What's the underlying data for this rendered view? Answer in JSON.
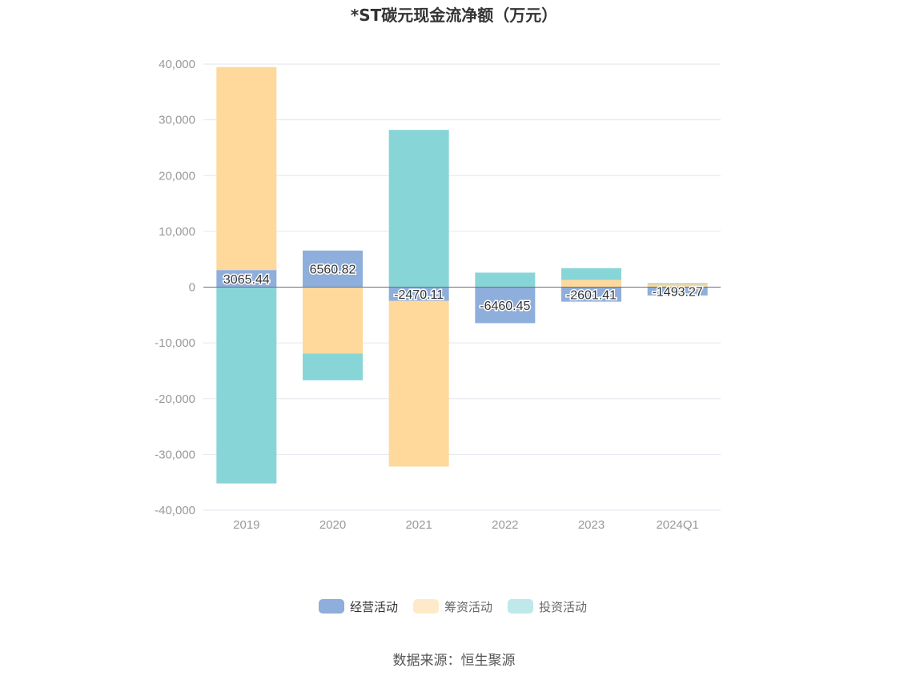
{
  "chart_data": {
    "type": "bar",
    "stacked": true,
    "title": "*ST碳元现金流净额（万元）",
    "categories": [
      "2019",
      "2020",
      "2021",
      "2022",
      "2023",
      "2024Q1"
    ],
    "series": [
      {
        "name": "经营活动",
        "color": "#8eaedc",
        "values": [
          3065.44,
          6560.82,
          -2470.11,
          -6460.45,
          -2601.41,
          -1493.27
        ]
      },
      {
        "name": "筹资活动",
        "color": "#fed99b",
        "values": [
          36400,
          -11900,
          -29700,
          0,
          1300,
          500
        ]
      },
      {
        "name": "投资活动",
        "color": "#88d5d8",
        "values": [
          -35200,
          -4800,
          28200,
          2600,
          2100,
          200
        ]
      }
    ],
    "data_labels": [
      "3065.44",
      "6560.82",
      "-2470.11",
      "-6460.45",
      "-2601.41",
      "-1493.27"
    ],
    "ylim": [
      -40000,
      40000
    ],
    "yticks": [
      40000,
      30000,
      20000,
      10000,
      0,
      -10000,
      -20000,
      -30000,
      -40000
    ],
    "ytick_labels": [
      "40,000",
      "30,000",
      "20,000",
      "10,000",
      "0",
      "-10,000",
      "-20,000",
      "-30,000",
      "-40,000"
    ],
    "grid": true,
    "legend": "bottom",
    "source": "数据来源：恒生聚源"
  }
}
